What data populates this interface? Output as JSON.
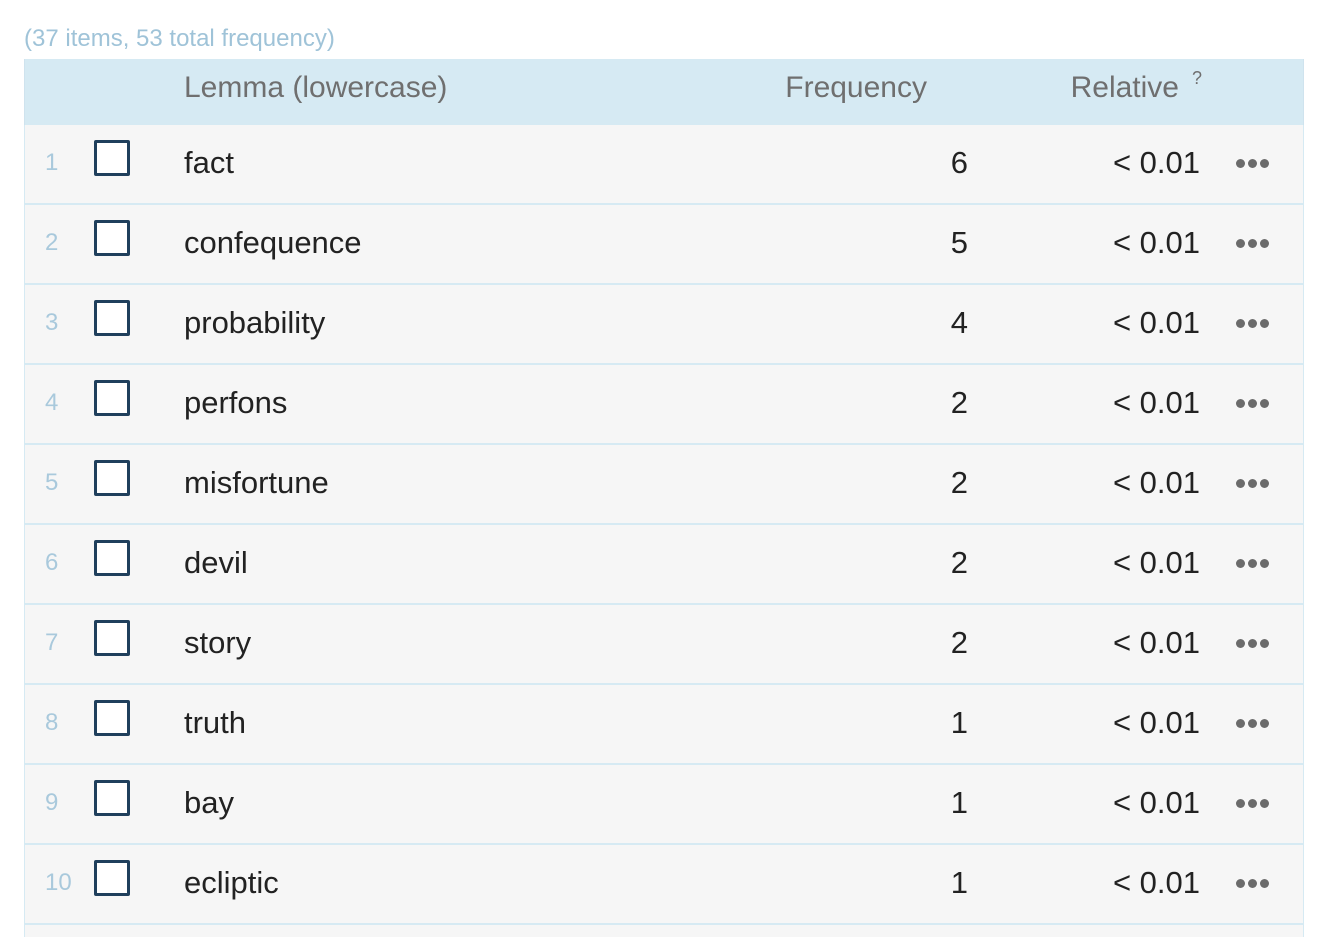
{
  "summary": "(37 items, 53 total frequency)",
  "header": {
    "lemma": "Lemma (lowercase)",
    "frequency": "Frequency",
    "relative": "Relative",
    "help": "?"
  },
  "rows": [
    {
      "num": "1",
      "lemma": "fact",
      "freq": "6",
      "rel": "< 0.01"
    },
    {
      "num": "2",
      "lemma": "confequence",
      "freq": "5",
      "rel": "< 0.01"
    },
    {
      "num": "3",
      "lemma": "probability",
      "freq": "4",
      "rel": "< 0.01"
    },
    {
      "num": "4",
      "lemma": "perfons",
      "freq": "2",
      "rel": "< 0.01"
    },
    {
      "num": "5",
      "lemma": "misfortune",
      "freq": "2",
      "rel": "< 0.01"
    },
    {
      "num": "6",
      "lemma": "devil",
      "freq": "2",
      "rel": "< 0.01"
    },
    {
      "num": "7",
      "lemma": "story",
      "freq": "2",
      "rel": "< 0.01"
    },
    {
      "num": "8",
      "lemma": "truth",
      "freq": "1",
      "rel": "< 0.01"
    },
    {
      "num": "9",
      "lemma": "bay",
      "freq": "1",
      "rel": "< 0.01"
    },
    {
      "num": "10",
      "lemma": "ecliptic",
      "freq": "1",
      "rel": "< 0.01"
    }
  ],
  "icons": {
    "row_menu": "more-horizontal-icon",
    "checkbox": "checkbox-icon"
  },
  "colors": {
    "header_bg": "#d6eaf3",
    "row_bg": "#f6f6f6",
    "summary_text": "#9fc3d8",
    "checkbox_border": "#1f3f5c"
  }
}
